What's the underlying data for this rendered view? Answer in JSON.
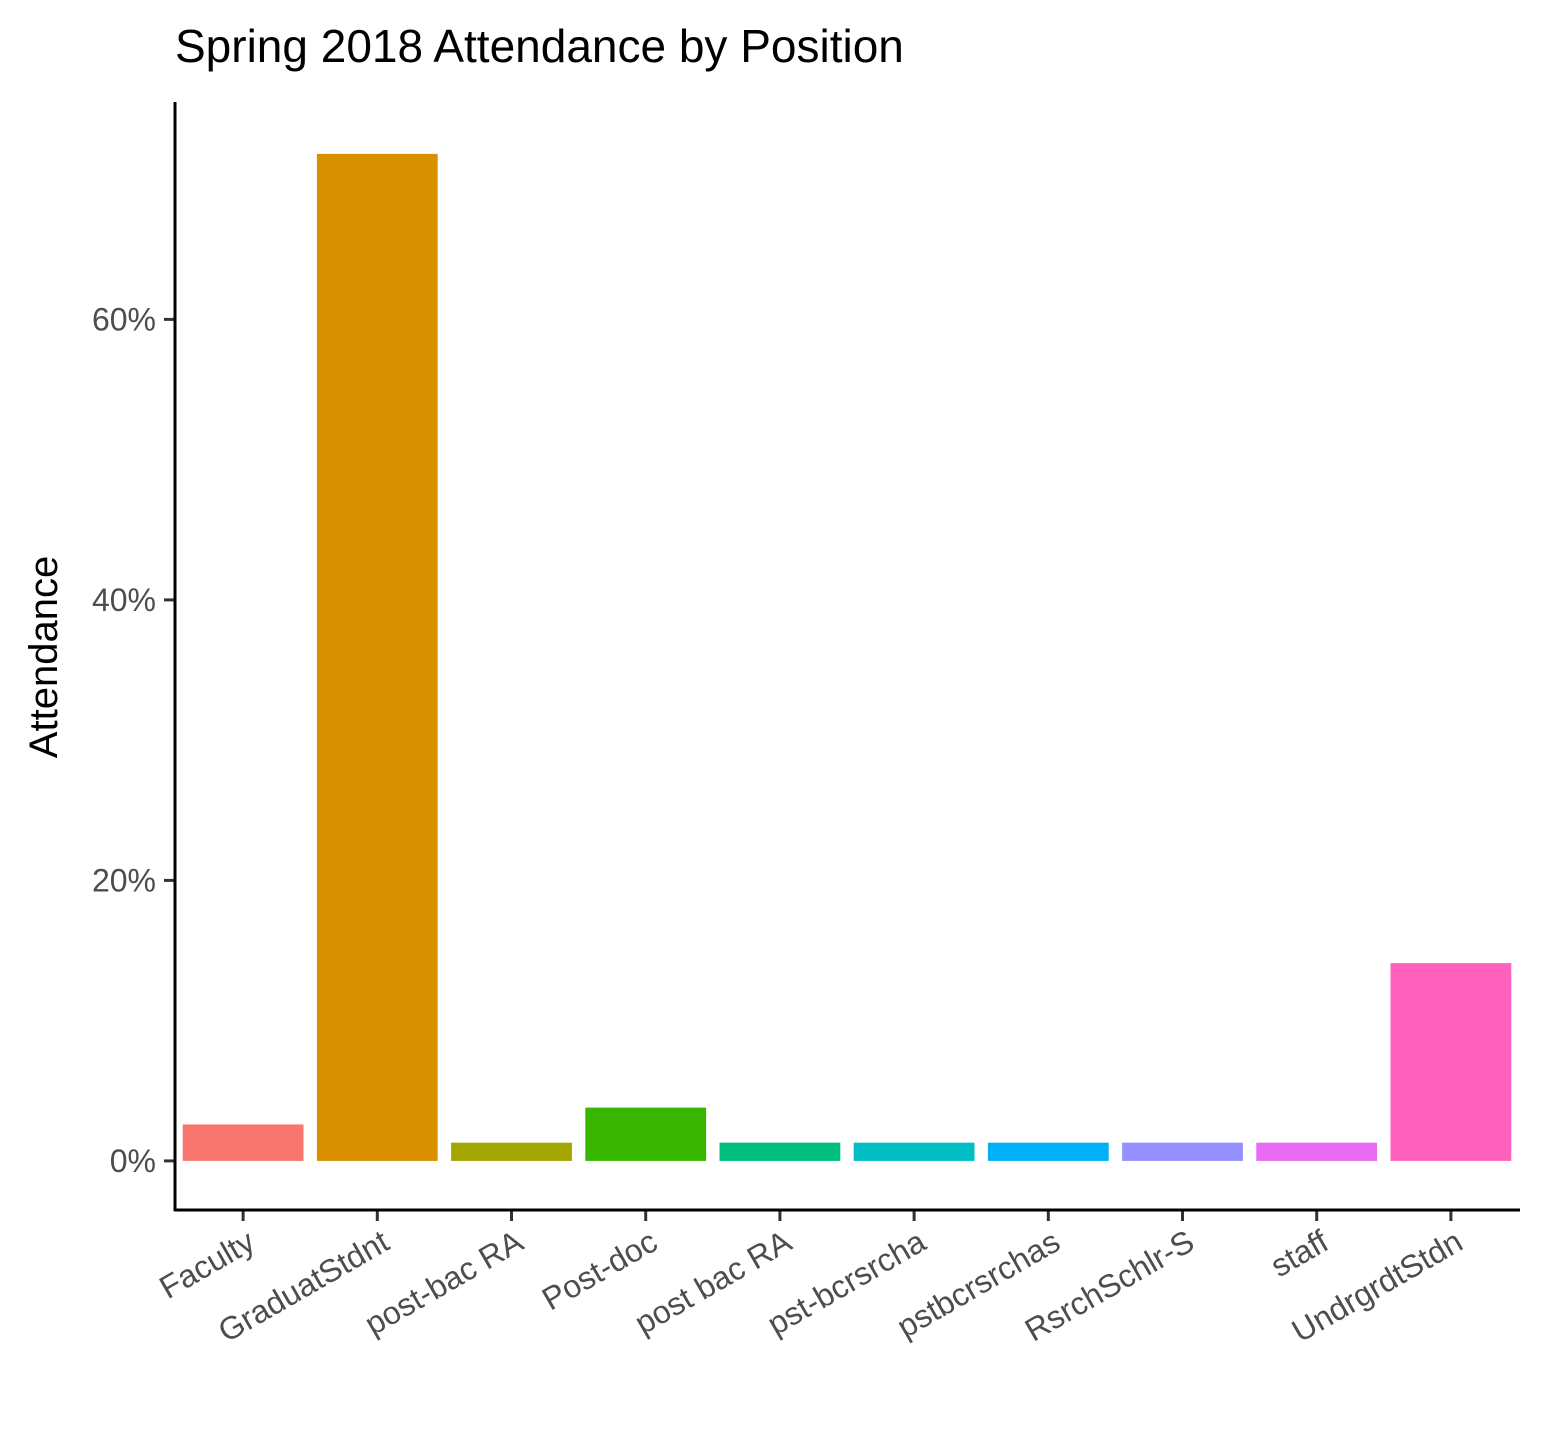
{
  "chart_data": {
    "type": "bar",
    "title": "Spring 2018 Attendance by Position",
    "xlabel": "",
    "ylabel": "Attendance",
    "ylim": [
      -3.5,
      75.5
    ],
    "y_ticks": [
      0,
      20,
      40,
      60
    ],
    "y_tick_labels": [
      "0%",
      "20%",
      "40%",
      "60%"
    ],
    "y_unit": "%",
    "grid": false,
    "legend": "none",
    "categories": [
      "Faculty",
      "GraduatStdnt",
      "post-bac RA",
      "Post-doc",
      "post bac RA",
      "pst-bcrsrcha",
      "pstbcrsrchas",
      "RsrchSchlr-S",
      "staff",
      "UndrgrdtStdn"
    ],
    "values": [
      2.6,
      71.8,
      1.3,
      3.8,
      1.3,
      1.3,
      1.3,
      1.3,
      1.3,
      14.1
    ],
    "colors": [
      "#F8766D",
      "#D89000",
      "#A3A500",
      "#39B600",
      "#00BF7D",
      "#00BFC4",
      "#00B0F6",
      "#9590FF",
      "#E76BF3",
      "#FF62BC"
    ]
  }
}
